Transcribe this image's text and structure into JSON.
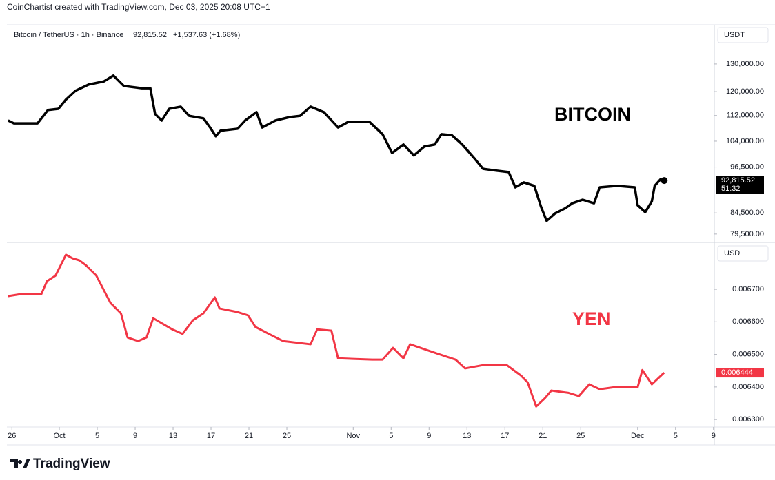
{
  "header": "CoinChartist created with TradingView.com, Dec 03, 2025 20:08 UTC+1",
  "logo": "TradingView",
  "chart_data": [
    {
      "type": "line",
      "symbol": "Bitcoin / TetherUS · 1h · Binance",
      "quote": "92,815.52",
      "change": "+1,537.63 (+1.68%)",
      "annotation": "BITCOIN",
      "unit": "USDT",
      "log_scale": true,
      "ylim": [
        77600,
        145600
      ],
      "yticks": [
        {
          "value": 79500,
          "label": "79,500.00"
        },
        {
          "value": 84500,
          "label": "84,500.00"
        },
        {
          "value": 96500,
          "label": "96,500.00"
        },
        {
          "value": 104000,
          "label": "104,000.00"
        },
        {
          "value": 112000,
          "label": "112,000.00"
        },
        {
          "value": 120000,
          "label": "120,000.00"
        },
        {
          "value": 130000,
          "label": "130,000.00"
        }
      ],
      "last_label": "92,815.52",
      "countdown": "51:32",
      "series": [
        {
          "name": "Bitcoin / TetherUS",
          "color": "#000000",
          "x": [
            -0.4,
            0.2,
            2.7,
            3.8,
            4.9,
            5.7,
            6.7,
            8.1,
            9.7,
            10.7,
            11.8,
            13.7,
            14.6,
            15.1,
            15.8,
            16.6,
            17.8,
            18.7,
            20.2,
            20.9,
            21.5,
            22.0,
            23.8,
            24.6,
            25.8,
            26.4,
            27.8,
            29.3,
            30.4,
            31.5,
            32.9,
            34.4,
            35.5,
            37.7,
            39.1,
            40.1,
            41.3,
            42.4,
            43.5,
            44.6,
            45.3,
            46.4,
            47.5,
            48.8,
            49.7,
            51.1,
            52.4,
            53.1,
            54.0,
            55.1,
            55.8,
            56.4,
            57.3,
            58.4,
            59.1,
            60.2,
            61.4,
            62.0,
            63.8,
            65.7,
            66.0,
            66.8,
            67.5,
            67.8,
            68.4,
            68.8
          ],
          "values": [
            110400,
            109500,
            109500,
            113800,
            114200,
            117300,
            120300,
            122500,
            123600,
            125700,
            122000,
            121200,
            121200,
            112500,
            110400,
            114200,
            114900,
            111900,
            111100,
            108200,
            105500,
            107200,
            107800,
            110400,
            113100,
            108200,
            110400,
            111500,
            111900,
            114900,
            113100,
            108200,
            110000,
            110000,
            106100,
            100500,
            103000,
            99800,
            102400,
            103000,
            106100,
            105800,
            103000,
            98900,
            96000,
            95500,
            95100,
            91000,
            92300,
            91400,
            86100,
            82600,
            84400,
            85700,
            86900,
            87800,
            86900,
            91000,
            91400,
            91000,
            86400,
            84700,
            87400,
            91400,
            93100,
            92815.52
          ]
        }
      ]
    },
    {
      "type": "line",
      "annotation": "YEN",
      "unit": "USD",
      "log_scale": false,
      "ylim": [
        0.006277,
        0.006844
      ],
      "yticks": [
        {
          "value": 0.0063,
          "label": "0.006300"
        },
        {
          "value": 0.0064,
          "label": "0.006400"
        },
        {
          "value": 0.0065,
          "label": "0.006500"
        },
        {
          "value": 0.0066,
          "label": "0.006600"
        },
        {
          "value": 0.0067,
          "label": "0.006700"
        }
      ],
      "last_label": "0.006444",
      "xlim": [
        -0.53,
        74.09
      ],
      "xticks": [
        {
          "value": 0,
          "label": "26"
        },
        {
          "value": 5,
          "label": "Oct"
        },
        {
          "value": 9,
          "label": "5"
        },
        {
          "value": 13,
          "label": "9"
        },
        {
          "value": 17,
          "label": "13"
        },
        {
          "value": 21,
          "label": "17"
        },
        {
          "value": 25,
          "label": "21"
        },
        {
          "value": 29,
          "label": "25"
        },
        {
          "value": 36,
          "label": "Nov"
        },
        {
          "value": 40,
          "label": "5"
        },
        {
          "value": 44,
          "label": "9"
        },
        {
          "value": 48,
          "label": "13"
        },
        {
          "value": 52,
          "label": "17"
        },
        {
          "value": 56,
          "label": "21"
        },
        {
          "value": 60,
          "label": "25"
        },
        {
          "value": 66,
          "label": "Dec"
        },
        {
          "value": 70,
          "label": "5"
        },
        {
          "value": 74,
          "label": "9"
        }
      ],
      "series": [
        {
          "name": "YEN",
          "color": "#f23645",
          "x": [
            -0.4,
            0.9,
            3.1,
            3.7,
            4.6,
            5.7,
            6.4,
            7.1,
            7.8,
            8.9,
            10.4,
            11.5,
            12.2,
            13.3,
            14.2,
            14.9,
            16.9,
            18.0,
            19.1,
            20.2,
            21.4,
            21.9,
            23.8,
            24.9,
            25.7,
            27.1,
            28.6,
            31.5,
            32.2,
            33.7,
            34.4,
            38.0,
            39.1,
            40.2,
            41.3,
            42.0,
            44.6,
            46.8,
            47.8,
            49.7,
            52.2,
            53.7,
            54.4,
            55.3,
            56.2,
            56.9,
            58.7,
            59.8,
            60.9,
            62.0,
            63.5,
            66.0,
            66.5,
            67.5,
            68.8
          ],
          "values": [
            0.006679,
            0.006685,
            0.006685,
            0.006725,
            0.006742,
            0.006806,
            0.006795,
            0.006789,
            0.006774,
            0.006742,
            0.006658,
            0.006626,
            0.006552,
            0.006541,
            0.006552,
            0.006611,
            0.006577,
            0.006563,
            0.006605,
            0.006626,
            0.006675,
            0.006641,
            0.00663,
            0.00662,
            0.006584,
            0.006563,
            0.006541,
            0.006531,
            0.006577,
            0.006573,
            0.006488,
            0.006484,
            0.006484,
            0.00652,
            0.006488,
            0.006531,
            0.006505,
            0.006484,
            0.006457,
            0.006467,
            0.006467,
            0.006435,
            0.006414,
            0.00634,
            0.006365,
            0.006389,
            0.006382,
            0.006372,
            0.006408,
            0.006393,
            0.006399,
            0.006399,
            0.006452,
            0.006408,
            0.006444
          ]
        }
      ]
    }
  ]
}
